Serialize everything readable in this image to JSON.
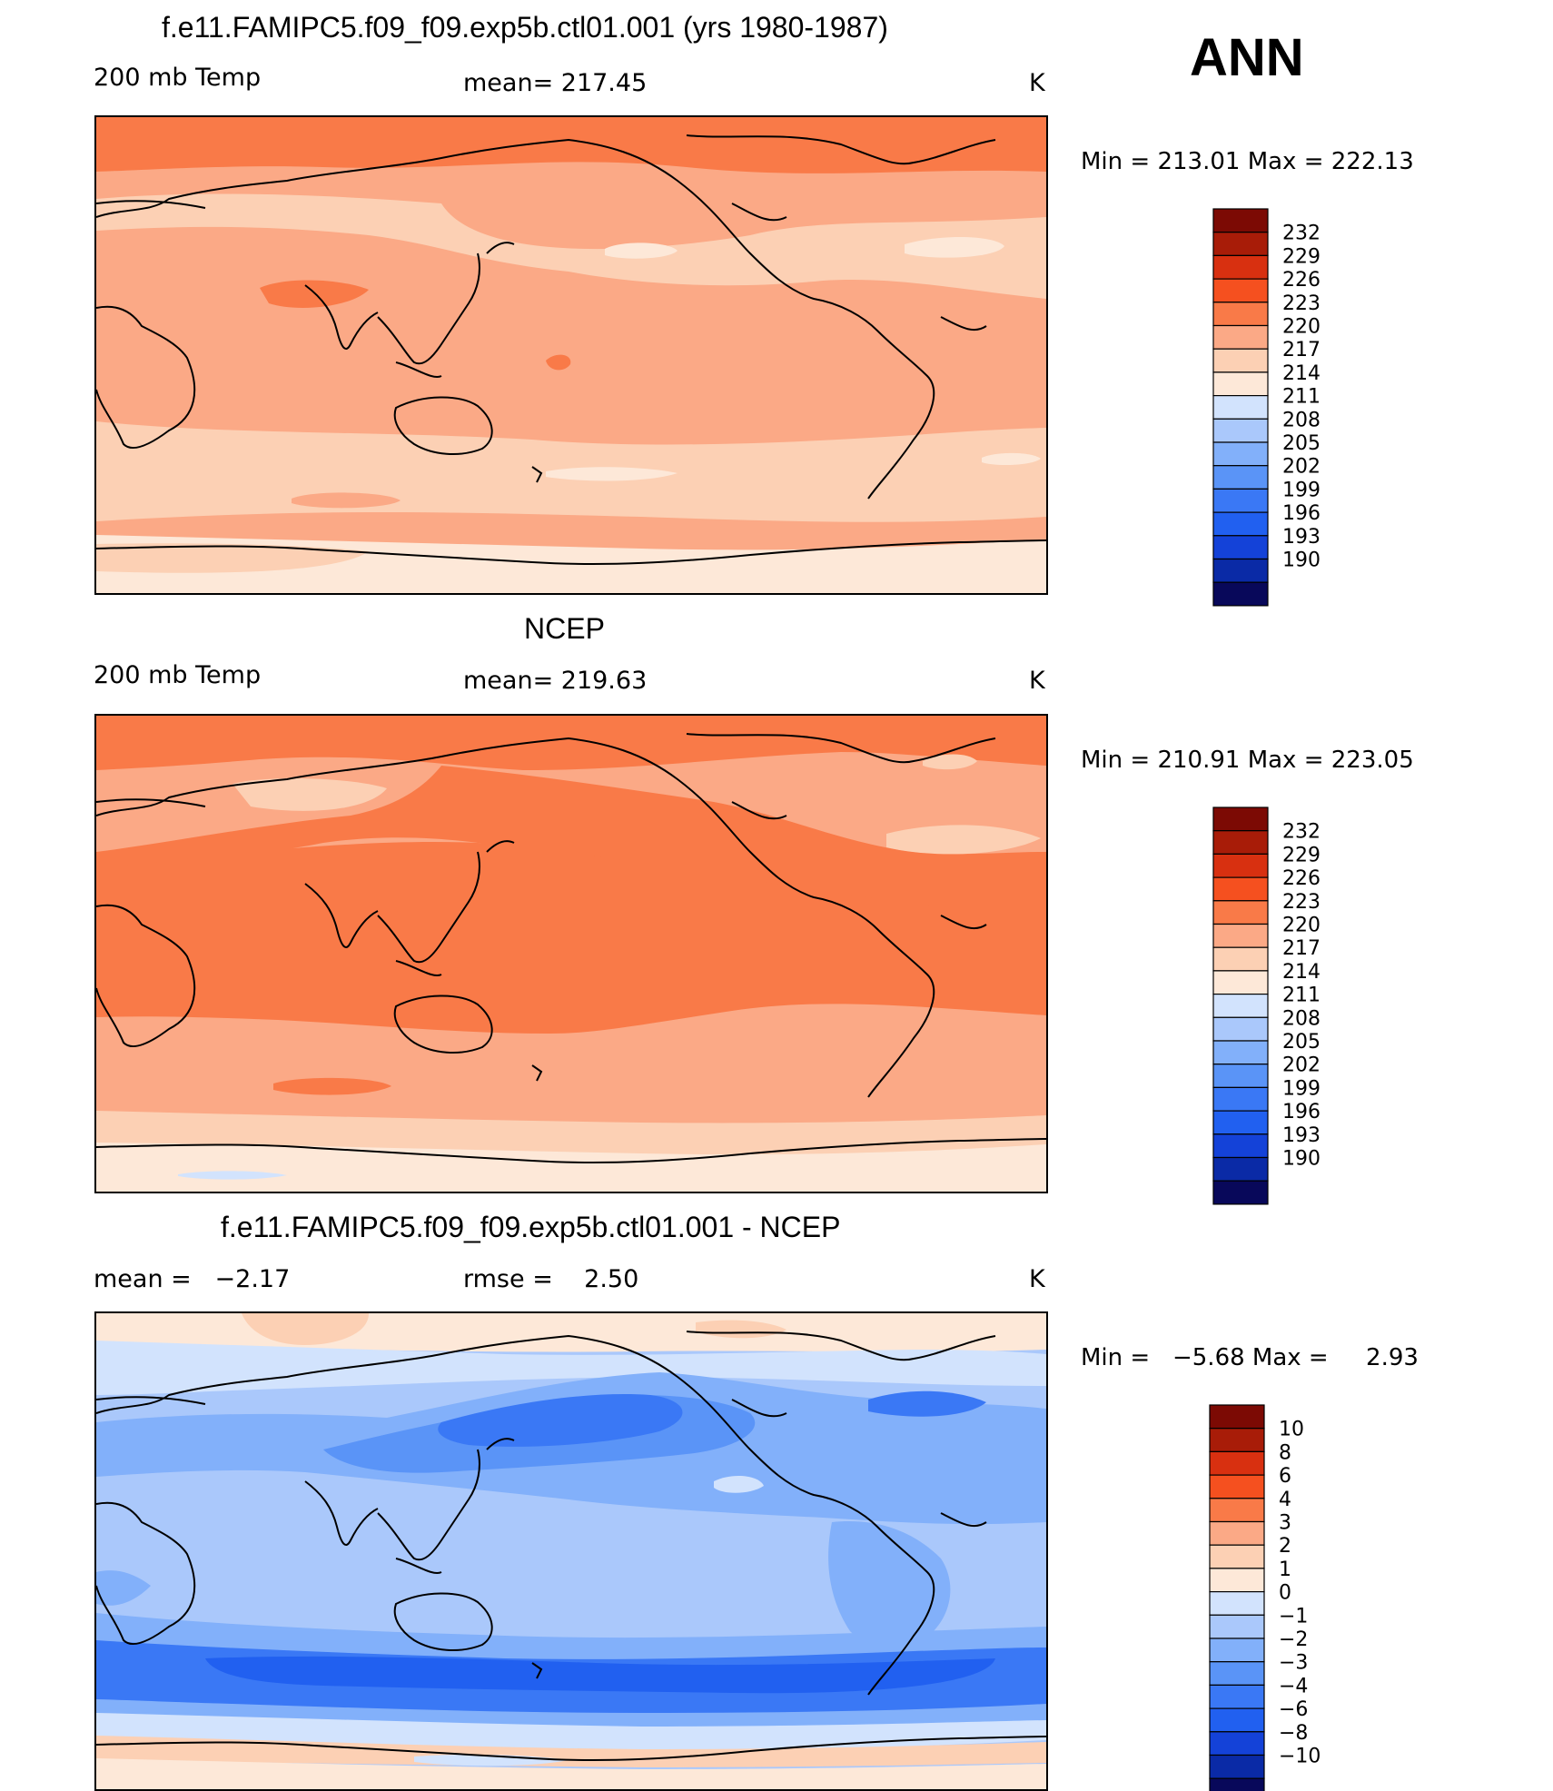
{
  "season": "ANN",
  "colors": {
    "temp_scale": [
      "#08085a",
      "#0a2aa6",
      "#1442d8",
      "#2160f0",
      "#3a78f5",
      "#5a94f7",
      "#82b0fa",
      "#aac8fb",
      "#d2e3fd",
      "#fde8d8",
      "#fcd0b4",
      "#fba986",
      "#f97a48",
      "#f5501f",
      "#d83010",
      "#a81c08",
      "#7c0a04"
    ],
    "diff_scale": [
      "#08085a",
      "#0a2aa6",
      "#1442d8",
      "#2160f0",
      "#3a78f5",
      "#5a94f7",
      "#82b0fa",
      "#aac8fb",
      "#d2e3fd",
      "#fde8d8",
      "#fcd0b4",
      "#fba986",
      "#f97a48",
      "#f5501f",
      "#d83010",
      "#a81c08",
      "#7c0a04"
    ]
  },
  "panels": [
    {
      "title": "f.e11.FAMIPC5.f09_f09.exp5b.ctl01.001 (yrs 1980-1987)",
      "left_label": "200 mb Temp",
      "center_label": "mean= 217.45",
      "units": "K",
      "minmax": "Min = 213.01 Max = 222.13",
      "colorbar_labels": [
        "232",
        "229",
        "226",
        "223",
        "220",
        "217",
        "214",
        "211",
        "208",
        "205",
        "202",
        "199",
        "196",
        "193",
        "190"
      ]
    },
    {
      "title": "NCEP",
      "left_label": "200 mb Temp",
      "center_label": "mean= 219.63",
      "units": "K",
      "minmax": "Min = 210.91 Max = 223.05",
      "colorbar_labels": [
        "232",
        "229",
        "226",
        "223",
        "220",
        "217",
        "214",
        "211",
        "208",
        "205",
        "202",
        "199",
        "196",
        "193",
        "190"
      ]
    },
    {
      "title": "f.e11.FAMIPC5.f09_f09.exp5b.ctl01.001 - NCEP",
      "left_label": "mean =   −2.17",
      "center_label": "rmse =    2.50",
      "units": "K",
      "minmax": "Min =   −5.68 Max =     2.93",
      "colorbar_labels": [
        "10",
        "8",
        "6",
        "4",
        "3",
        "2",
        "1",
        "0",
        "−1",
        "−2",
        "−3",
        "−4",
        "−6",
        "−8",
        "−10"
      ]
    }
  ]
}
